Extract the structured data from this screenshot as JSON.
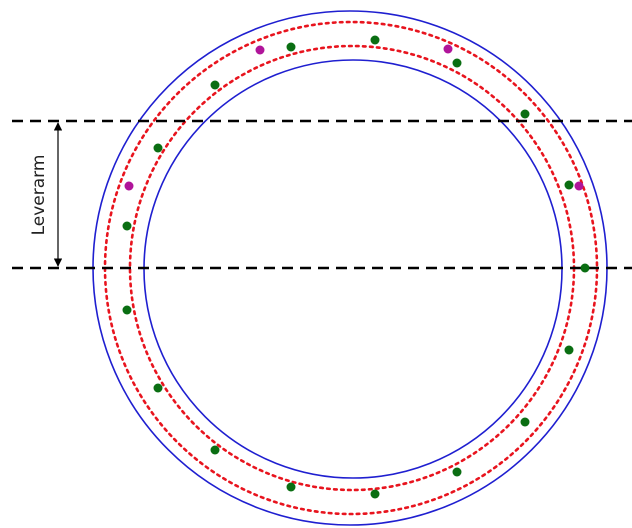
{
  "labels": {
    "leverarm": "Leverarm"
  }
}
